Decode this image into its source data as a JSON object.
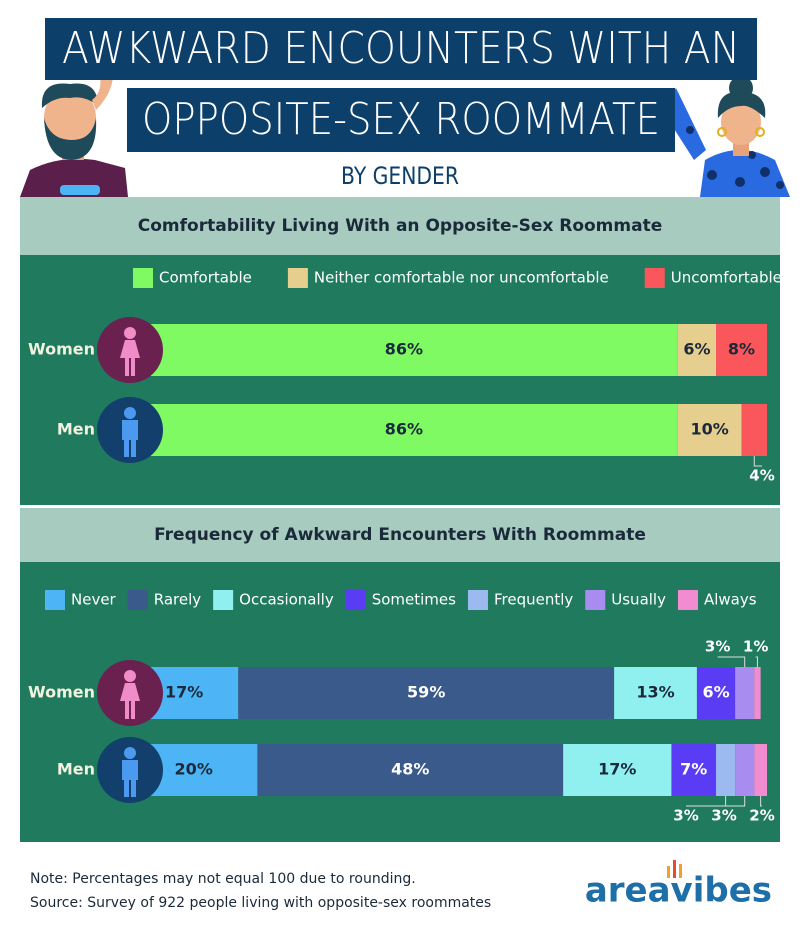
{
  "header": {
    "title_lines": [
      "AWKWARD ENCOUNTERS WITH AN",
      "OPPOSITE-SEX ROOMMATE"
    ],
    "subtitle": "BY GENDER"
  },
  "chart_data": [
    {
      "type": "bar",
      "orientation": "horizontal",
      "stacked": true,
      "title": "Comfortability Living With an Opposite-Sex Roommate",
      "categories": [
        "Women",
        "Men"
      ],
      "series": [
        {
          "name": "Comfortable",
          "color": "#7ffa62",
          "values": [
            86,
            86
          ],
          "value_labels": [
            "86%",
            "86%"
          ]
        },
        {
          "name": "Neither comfortable nor uncomfortable",
          "color": "#e6ce8e",
          "values": [
            6,
            10
          ],
          "value_labels": [
            "6%",
            "10%"
          ]
        },
        {
          "name": "Uncomfortable",
          "color": "#fa575c",
          "values": [
            8,
            4
          ],
          "value_labels": [
            "8%",
            "4%"
          ]
        }
      ]
    },
    {
      "type": "bar",
      "orientation": "horizontal",
      "stacked": true,
      "title": "Frequency of Awkward Encounters With Roommate",
      "categories": [
        "Women",
        "Men"
      ],
      "series": [
        {
          "name": "Never",
          "color": "#4db5f5",
          "values": [
            17,
            20
          ],
          "value_labels": [
            "17%",
            "20%"
          ]
        },
        {
          "name": "Rarely",
          "color": "#3a5a8c",
          "values": [
            59,
            48
          ],
          "value_labels": [
            "59%",
            "48%"
          ]
        },
        {
          "name": "Occasionally",
          "color": "#90f0f0",
          "values": [
            13,
            17
          ],
          "value_labels": [
            "13%",
            "17%"
          ]
        },
        {
          "name": "Sometimes",
          "color": "#5a3cf5",
          "values": [
            6,
            7
          ],
          "value_labels": [
            "6%",
            "7%"
          ]
        },
        {
          "name": "Frequently",
          "color": "#9cb9f0",
          "values": [
            null,
            3
          ],
          "value_labels": [
            null,
            "3%"
          ]
        },
        {
          "name": "Usually",
          "color": "#a88cf0",
          "values": [
            3,
            3
          ],
          "value_labels": [
            "3%",
            "3%"
          ]
        },
        {
          "name": "Always",
          "color": "#f08ccf",
          "values": [
            1,
            2
          ],
          "value_labels": [
            "1%",
            "2%"
          ]
        }
      ]
    }
  ],
  "footer": {
    "note": "Note: Percentages may not equal 100 due to rounding.",
    "source": "Source: Survey of 922 people living with opposite-sex roommates",
    "logo": "areavibes"
  }
}
